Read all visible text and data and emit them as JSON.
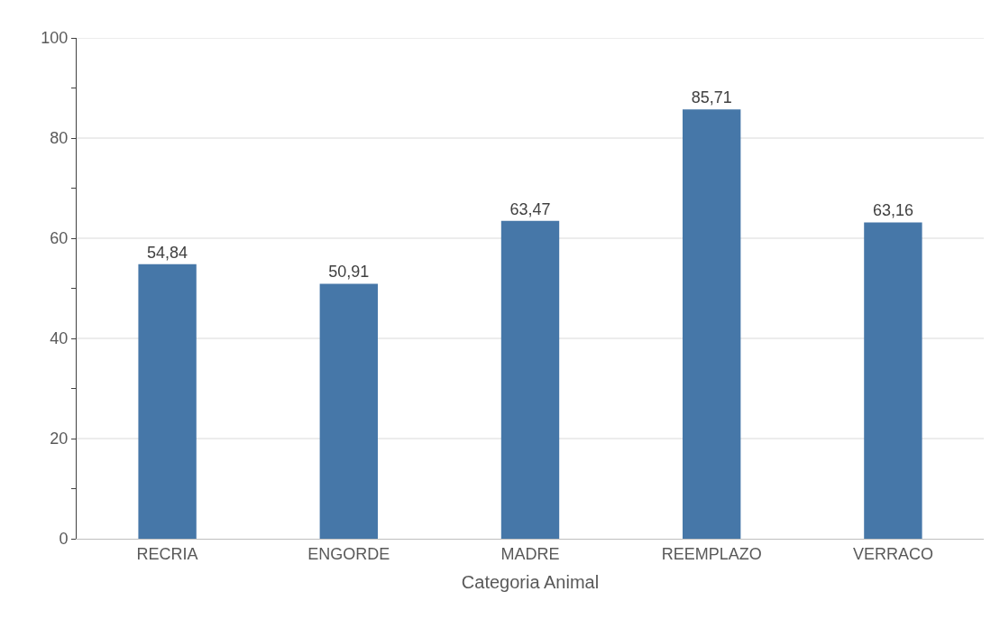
{
  "chart_data": {
    "type": "bar",
    "xlabel": "Categoria Animal",
    "categories": [
      "RECRIA",
      "ENGORDE",
      "MADRE",
      "REEMPLAZO",
      "VERRACO"
    ],
    "values": [
      54.84,
      50.91,
      63.47,
      85.71,
      63.16
    ],
    "value_labels": [
      "54,84",
      "50,91",
      "63,47",
      "85,71",
      "63,16"
    ],
    "color": "#4677a8",
    "ylim": [
      0,
      100
    ],
    "yticks": [
      0,
      {
        "value": 10,
        "label": null
      },
      20,
      {
        "value": 30,
        "label": null
      },
      40,
      {
        "value": 50,
        "label": null
      },
      60,
      {
        "value": 70,
        "label": null
      },
      80,
      {
        "value": 90,
        "label": null
      },
      100
    ],
    "grid": "y"
  }
}
